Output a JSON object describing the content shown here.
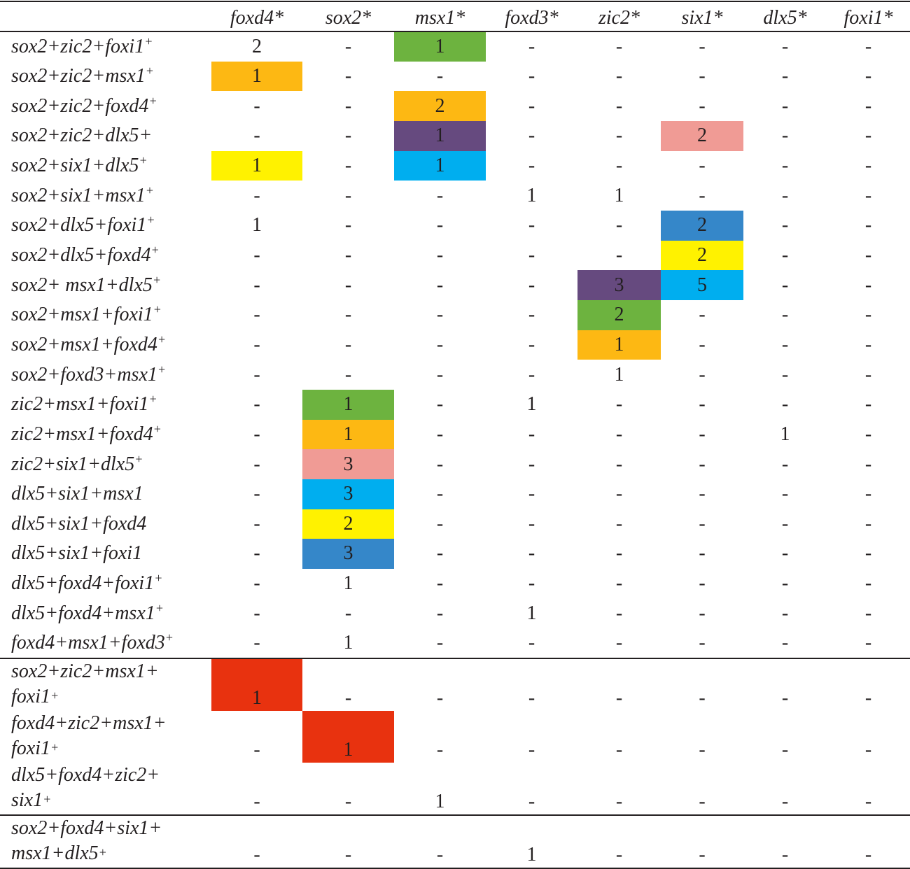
{
  "colors": {
    "green": "#6db33f",
    "orange": "#fdb813",
    "purple": "#664a7f",
    "cyan": "#00aeef",
    "yellow": "#fff200",
    "pink": "#f09b95",
    "blue": "#3587c9",
    "red": "#e8320f"
  },
  "columns": [
    "",
    "foxd4*",
    "sox2*",
    "msx1*",
    "foxd3*",
    "zic2*",
    "six1*",
    "dlx5*",
    "foxi1*"
  ],
  "rows": [
    {
      "label": [
        "sox2+zic2+foxi1"
      ],
      "sup": "+",
      "values": [
        "2",
        "-",
        "1",
        "-",
        "-",
        "-",
        "-",
        "-"
      ],
      "hl": {
        "2": "green"
      }
    },
    {
      "label": [
        "sox2+zic2+msx1"
      ],
      "sup": "+",
      "values": [
        "1",
        "-",
        "-",
        "-",
        "-",
        "-",
        "-",
        "-"
      ],
      "hl": {
        "0": "orange"
      }
    },
    {
      "label": [
        "sox2+zic2+foxd4"
      ],
      "sup": "+",
      "values": [
        "-",
        "-",
        "2",
        "-",
        "-",
        "-",
        "-",
        "-"
      ],
      "hl": {
        "2": "orange"
      }
    },
    {
      "label": [
        "sox2+zic2+dlx5+"
      ],
      "sup": "",
      "values": [
        "-",
        "-",
        "1",
        "-",
        "-",
        "2",
        "-",
        "-"
      ],
      "hl": {
        "2": "purple",
        "5": "pink"
      }
    },
    {
      "label": [
        "sox2+six1+dlx5"
      ],
      "sup": "+",
      "values": [
        "1",
        "-",
        "1",
        "-",
        "-",
        "-",
        "-",
        "-"
      ],
      "hl": {
        "0": "yellow",
        "2": "cyan"
      }
    },
    {
      "label": [
        "sox2+six1+msx1"
      ],
      "sup": "+",
      "values": [
        "-",
        "-",
        "-",
        "1",
        "1",
        "-",
        "-",
        "-"
      ],
      "hl": {}
    },
    {
      "label": [
        "sox2+dlx5+foxi1"
      ],
      "sup": "+",
      "values": [
        "1",
        "-",
        "-",
        "-",
        "-",
        "2",
        "-",
        "-"
      ],
      "hl": {
        "5": "blue"
      }
    },
    {
      "label": [
        "sox2+dlx5+foxd4"
      ],
      "sup": "+",
      "values": [
        "-",
        "-",
        "-",
        "-",
        "-",
        "2",
        "-",
        "-"
      ],
      "hl": {
        "5": "yellow"
      }
    },
    {
      "label": [
        "sox2+ msx1+dlx5"
      ],
      "sup": "+",
      "values": [
        "-",
        "-",
        "-",
        "-",
        "3",
        "5",
        "-",
        "-"
      ],
      "hl": {
        "4": "purple",
        "5": "cyan"
      }
    },
    {
      "label": [
        "sox2+msx1+foxi1"
      ],
      "sup": "+",
      "values": [
        "-",
        "-",
        "-",
        "-",
        "2",
        "-",
        "-",
        "-"
      ],
      "hl": {
        "4": "green"
      }
    },
    {
      "label": [
        "sox2+msx1+foxd4"
      ],
      "sup": "+",
      "values": [
        "-",
        "-",
        "-",
        "-",
        "1",
        "-",
        "-",
        "-"
      ],
      "hl": {
        "4": "orange"
      }
    },
    {
      "label": [
        "sox2+foxd3+msx1"
      ],
      "sup": "+",
      "values": [
        "-",
        "-",
        "-",
        "-",
        "1",
        "-",
        "-",
        "-"
      ],
      "hl": {}
    },
    {
      "label": [
        "zic2+msx1+foxi1"
      ],
      "sup": "+",
      "values": [
        "-",
        "1",
        "-",
        "1",
        "-",
        "-",
        "-",
        "-"
      ],
      "hl": {
        "1": "green"
      }
    },
    {
      "label": [
        "zic2+msx1+foxd4"
      ],
      "sup": "+",
      "values": [
        "-",
        "1",
        "-",
        "-",
        "-",
        "-",
        "1",
        "-"
      ],
      "hl": {
        "1": "orange"
      }
    },
    {
      "label": [
        "zic2+six1+dlx5"
      ],
      "sup": "+",
      "values": [
        "-",
        "3",
        "-",
        "-",
        "-",
        "-",
        "-",
        "-"
      ],
      "hl": {
        "1": "pink"
      }
    },
    {
      "label": [
        "dlx5+six1+msx1"
      ],
      "sup": "",
      "values": [
        "-",
        "3",
        "-",
        "-",
        "-",
        "-",
        "-",
        "-"
      ],
      "hl": {
        "1": "cyan"
      }
    },
    {
      "label": [
        "dlx5+six1+foxd4"
      ],
      "sup": "",
      "values": [
        "-",
        "2",
        "-",
        "-",
        "-",
        "-",
        "-",
        "-"
      ],
      "hl": {
        "1": "yellow"
      }
    },
    {
      "label": [
        "dlx5+six1+foxi1"
      ],
      "sup": "",
      "values": [
        "-",
        "3",
        "-",
        "-",
        "-",
        "-",
        "-",
        "-"
      ],
      "hl": {
        "1": "blue"
      }
    },
    {
      "label": [
        "dlx5+foxd4+foxi1"
      ],
      "sup": "+",
      "values": [
        "-",
        "1",
        "-",
        "-",
        "-",
        "-",
        "-",
        "-"
      ],
      "hl": {}
    },
    {
      "label": [
        "dlx5+foxd4+msx1"
      ],
      "sup": "+",
      "values": [
        "-",
        "-",
        "-",
        "1",
        "-",
        "-",
        "-",
        "-"
      ],
      "hl": {}
    },
    {
      "label": [
        "foxd4+msx1+foxd3"
      ],
      "sup": "+",
      "values": [
        "-",
        "1",
        "-",
        "-",
        "-",
        "-",
        "-",
        "-"
      ],
      "hl": {},
      "sep": true
    },
    {
      "label": [
        "sox2+zic2+msx1+",
        "foxi1"
      ],
      "sup": "+",
      "values": [
        "1",
        "-",
        "-",
        "-",
        "-",
        "-",
        "-",
        "-"
      ],
      "hl": {
        "0": "red"
      }
    },
    {
      "label": [
        "foxd4+zic2+msx1+",
        "foxi1"
      ],
      "sup": "+",
      "values": [
        "-",
        "1",
        "-",
        "-",
        "-",
        "-",
        "-",
        "-"
      ],
      "hl": {
        "1": "red"
      }
    },
    {
      "label": [
        "dlx5+foxd4+zic2+",
        "six1"
      ],
      "sup": "+",
      "values": [
        "-",
        "-",
        "1",
        "-",
        "-",
        "-",
        "-",
        "-"
      ],
      "hl": {},
      "sep": true
    },
    {
      "label": [
        "sox2+foxd4+six1+",
        "msx1+dlx5"
      ],
      "sup": "+",
      "values": [
        "-",
        "-",
        "-",
        "1",
        "-",
        "-",
        "-",
        "-"
      ],
      "hl": {},
      "sep": true
    }
  ]
}
